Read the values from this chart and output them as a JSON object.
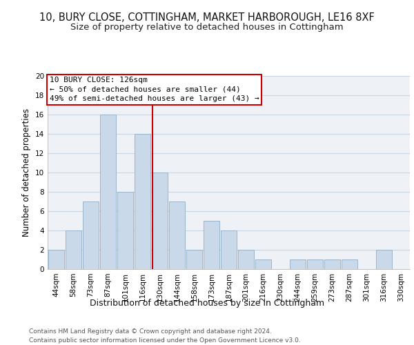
{
  "title": "10, BURY CLOSE, COTTINGHAM, MARKET HARBOROUGH, LE16 8XF",
  "subtitle": "Size of property relative to detached houses in Cottingham",
  "xlabel": "Distribution of detached houses by size in Cottingham",
  "ylabel": "Number of detached properties",
  "categories": [
    "44sqm",
    "58sqm",
    "73sqm",
    "87sqm",
    "101sqm",
    "116sqm",
    "130sqm",
    "144sqm",
    "158sqm",
    "173sqm",
    "187sqm",
    "201sqm",
    "216sqm",
    "230sqm",
    "244sqm",
    "259sqm",
    "273sqm",
    "287sqm",
    "301sqm",
    "316sqm",
    "330sqm"
  ],
  "values": [
    2,
    4,
    7,
    16,
    8,
    14,
    10,
    7,
    2,
    5,
    4,
    2,
    1,
    0,
    1,
    1,
    1,
    1,
    0,
    2,
    0
  ],
  "bar_color": "#c9d9ea",
  "bar_edge_color": "#9ab4ca",
  "grid_color": "#c8d4e0",
  "background_color": "#eef2f7",
  "vline_x_index": 5.57,
  "vline_color": "#cc0000",
  "annotation_line1": "10 BURY CLOSE: 126sqm",
  "annotation_line2": "← 50% of detached houses are smaller (44)",
  "annotation_line3": "49% of semi-detached houses are larger (43) →",
  "annotation_box_color": "#ffffff",
  "annotation_box_edge": "#cc0000",
  "footer_text": "Contains HM Land Registry data © Crown copyright and database right 2024.\nContains public sector information licensed under the Open Government Licence v3.0.",
  "ylim": [
    0,
    20
  ],
  "yticks": [
    0,
    2,
    4,
    6,
    8,
    10,
    12,
    14,
    16,
    18,
    20
  ],
  "title_fontsize": 10.5,
  "subtitle_fontsize": 9.5,
  "xlabel_fontsize": 9,
  "ylabel_fontsize": 8.5,
  "tick_fontsize": 7.5,
  "ann_fontsize": 8,
  "footer_fontsize": 6.5
}
